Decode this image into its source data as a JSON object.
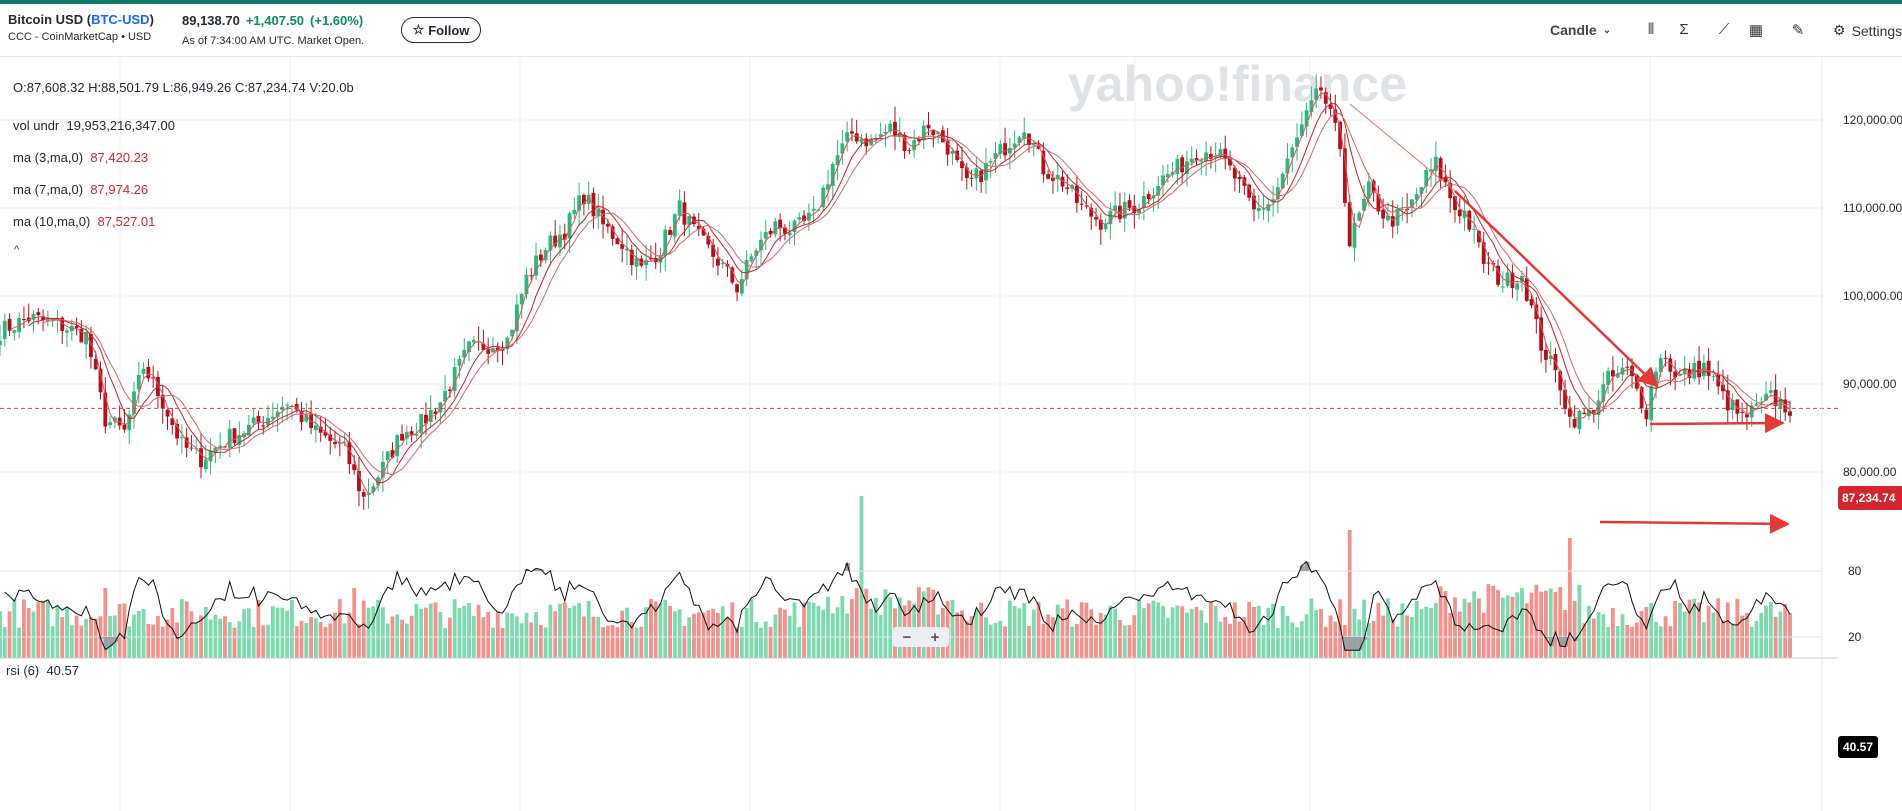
{
  "header": {
    "title_prefix": "Bitcoin USD (",
    "ticker": "BTC-USD",
    "title_suffix": ")",
    "subtitle": "CCC - CoinMarketCap • USD",
    "price": "89,138.70",
    "change": "+1,407.50",
    "change_pct": "(+1.60%)",
    "as_of": "As of 7:34:00 AM UTC. Market Open.",
    "follow_label": "Follow",
    "chart_type_label": "Candle",
    "settings_label": "Settings"
  },
  "icons": [
    "star-icon",
    "chevron-down-icon",
    "compare-icon",
    "indicators-icon",
    "draw-trend-icon",
    "calendar-icon",
    "pencil-icon",
    "gear-icon",
    "minus-icon",
    "plus-icon",
    "collapse-icon"
  ],
  "legend": {
    "ohlc": "O:87,608.32  H:88,501.79  L:86,949.26  C:87,234.74  V:20.0b",
    "vol_label": "vol undr",
    "vol_value": "19,953,216,347.00",
    "ma3_label": "ma (3,ma,0)",
    "ma3_value": "87,420.23",
    "ma7_label": "ma (7,ma,0)",
    "ma7_value": "87,974.26",
    "ma10_label": "ma (10,ma,0)",
    "ma10_value": "87,527.01"
  },
  "watermark": "yahoo!finance",
  "rsi": {
    "label": "rsi (6)",
    "value": "40.57"
  },
  "colors": {
    "up": "#2fb67c",
    "down": "#d3242f",
    "vol_up": "#7ed9ae",
    "vol_down": "#f0938f",
    "accent": "#117a6b"
  },
  "chart_data": {
    "type": "candlestick",
    "y_axis": {
      "ticks": [
        80000,
        90000,
        100000,
        110000,
        120000
      ],
      "tick_labels": [
        "80,000.00",
        "90,000.00",
        "100,000.00",
        "110,000.00",
        "120,000.00"
      ],
      "range": [
        71000,
        125500
      ]
    },
    "last_price": 87234.74,
    "last_price_label": "87,234.74",
    "rsi_ticks": [
      20,
      80
    ],
    "rsi_last": 40.57,
    "close_path": [
      [
        0,
        96000
      ],
      [
        6,
        97500
      ],
      [
        12,
        96800
      ],
      [
        18,
        95500
      ],
      [
        22,
        86000
      ],
      [
        26,
        84500
      ],
      [
        30,
        92000
      ],
      [
        34,
        88000
      ],
      [
        38,
        83000
      ],
      [
        42,
        81500
      ],
      [
        48,
        84000
      ],
      [
        54,
        85500
      ],
      [
        60,
        88000
      ],
      [
        66,
        84500
      ],
      [
        72,
        82500
      ],
      [
        76,
        77000
      ],
      [
        80,
        80500
      ],
      [
        84,
        84500
      ],
      [
        88,
        85500
      ],
      [
        92,
        88000
      ],
      [
        96,
        92000
      ],
      [
        98,
        94000
      ],
      [
        102,
        94500
      ],
      [
        106,
        95000
      ],
      [
        110,
        102000
      ],
      [
        114,
        105500
      ],
      [
        118,
        107500
      ],
      [
        122,
        111500
      ],
      [
        126,
        108000
      ],
      [
        130,
        106000
      ],
      [
        134,
        103000
      ],
      [
        138,
        105500
      ],
      [
        142,
        110000
      ],
      [
        146,
        106500
      ],
      [
        150,
        104000
      ],
      [
        154,
        101000
      ],
      [
        158,
        105500
      ],
      [
        162,
        108000
      ],
      [
        166,
        107500
      ],
      [
        170,
        109000
      ],
      [
        174,
        115000
      ],
      [
        178,
        118500
      ],
      [
        182,
        117500
      ],
      [
        186,
        119000
      ],
      [
        190,
        117000
      ],
      [
        194,
        119500
      ],
      [
        198,
        117000
      ],
      [
        202,
        112500
      ],
      [
        206,
        114500
      ],
      [
        210,
        117000
      ],
      [
        214,
        119500
      ],
      [
        218,
        114500
      ],
      [
        222,
        113000
      ],
      [
        226,
        110000
      ],
      [
        230,
        108500
      ],
      [
        234,
        109500
      ],
      [
        238,
        110500
      ],
      [
        242,
        113000
      ],
      [
        246,
        114500
      ],
      [
        250,
        116500
      ],
      [
        254,
        116500
      ],
      [
        258,
        113500
      ],
      [
        262,
        109500
      ],
      [
        266,
        111000
      ],
      [
        270,
        116500
      ],
      [
        274,
        121500
      ],
      [
        276,
        123500
      ],
      [
        280,
        117000
      ],
      [
        282,
        106000
      ],
      [
        286,
        112000
      ],
      [
        290,
        108500
      ],
      [
        294,
        109500
      ],
      [
        298,
        113500
      ],
      [
        300,
        115000
      ],
      [
        304,
        110000
      ],
      [
        306,
        109500
      ],
      [
        310,
        104000
      ],
      [
        314,
        101500
      ],
      [
        318,
        102500
      ],
      [
        322,
        94500
      ],
      [
        326,
        90000
      ],
      [
        328,
        86000
      ],
      [
        332,
        86500
      ],
      [
        336,
        90500
      ],
      [
        340,
        91500
      ],
      [
        344,
        87000
      ],
      [
        346,
        92000
      ],
      [
        348,
        93500
      ],
      [
        350,
        90500
      ],
      [
        354,
        91500
      ],
      [
        356,
        92000
      ],
      [
        360,
        88500
      ],
      [
        364,
        86000
      ],
      [
        368,
        87500
      ],
      [
        370,
        88500
      ],
      [
        374,
        87200
      ]
    ],
    "annotations": [
      "downtrend-line",
      "downtrend-arrow",
      "resistance-arrow",
      "support-arrow"
    ]
  }
}
